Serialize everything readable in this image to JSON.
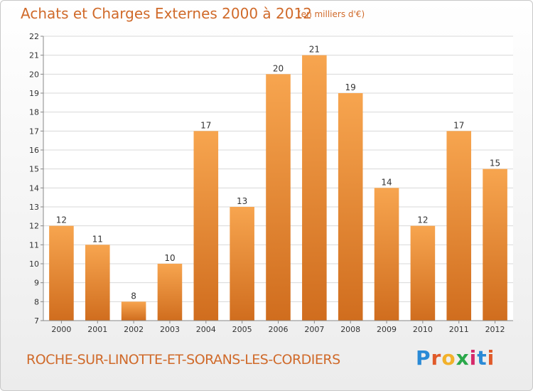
{
  "header": {
    "title": "Achats et Charges Externes 2000 à 2012",
    "unit": "(en milliers d'€)"
  },
  "footer": {
    "location": "ROCHE-SUR-LINOTTE-ET-SORANS-LES-CORDIERS",
    "brand_letters": [
      "P",
      "r",
      "o",
      "x",
      "i",
      "t",
      "i"
    ],
    "brand_colors": [
      "#2a8ad6",
      "#e05a2a",
      "#f2b12a",
      "#2aa84a",
      "#d62a6a",
      "#2a8ad6",
      "#e05a2a"
    ]
  },
  "colors": {
    "bar_top": "#f7a54f",
    "bar_bottom": "#d06d1e",
    "grid": "#d8d8d8",
    "axis": "#888888",
    "text": "#333333"
  },
  "chart_data": {
    "type": "bar",
    "categories": [
      "2000",
      "2001",
      "2002",
      "2003",
      "2004",
      "2005",
      "2006",
      "2007",
      "2008",
      "2009",
      "2010",
      "2011",
      "2012"
    ],
    "values": [
      12,
      11,
      8,
      10,
      17,
      13,
      20,
      21,
      19,
      14,
      12,
      17,
      15
    ],
    "data_labels": [
      "12",
      "11",
      "8",
      "10",
      "17",
      "13",
      "20",
      "21",
      "19",
      "14",
      "12",
      "17",
      "15"
    ],
    "ylim": [
      7,
      22
    ],
    "yticks": [
      "7",
      "8",
      "9",
      "10",
      "11",
      "12",
      "13",
      "14",
      "15",
      "16",
      "17",
      "18",
      "19",
      "20",
      "21",
      "22"
    ],
    "grid": true,
    "xlabel": "",
    "ylabel": ""
  }
}
